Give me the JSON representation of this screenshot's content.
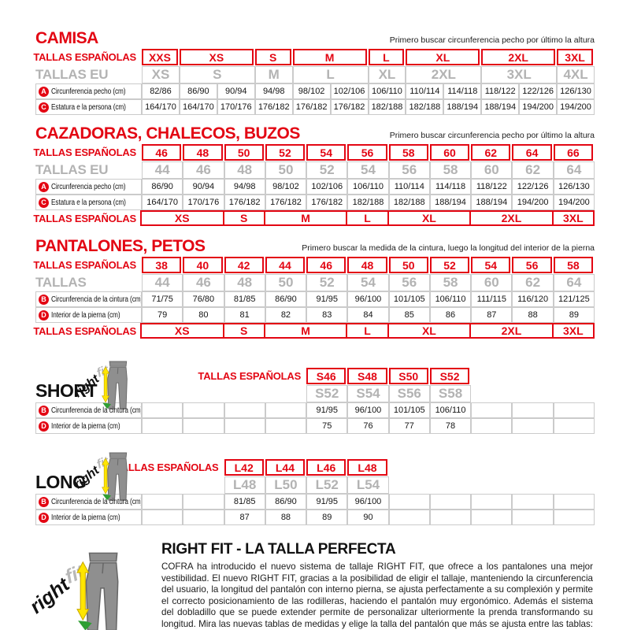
{
  "colors": {
    "red": "#e30613",
    "gray_size": "#b3b3b3",
    "border": "#cbcbcb",
    "yellow": "#ffe600",
    "green": "#2f9e33",
    "pants_gray": "#8f8f8f"
  },
  "camisa": {
    "title": "CAMISA",
    "note": "Primero buscar circunferencia pecho por último la altura",
    "table": {
      "cols": 12,
      "rows": [
        [
          {
            "k": "lblr",
            "t": "TALLAS ESPAÑOLAS"
          },
          {
            "k": "rh",
            "t": "XXS",
            "s": 1
          },
          {
            "k": "rh",
            "t": "XS",
            "s": 2
          },
          {
            "k": "rh",
            "t": "S",
            "s": 1
          },
          {
            "k": "rh",
            "t": "M",
            "s": 2
          },
          {
            "k": "rh",
            "t": "L",
            "s": 1
          },
          {
            "k": "rh",
            "t": "XL",
            "s": 2
          },
          {
            "k": "rh",
            "t": "2XL",
            "s": 2
          },
          {
            "k": "rh",
            "t": "3XL",
            "s": 1
          }
        ],
        [
          {
            "k": "lbleu",
            "t": "TALLAS EU"
          },
          {
            "k": "eu",
            "t": "XS",
            "s": 1
          },
          {
            "k": "eu",
            "t": "S",
            "s": 2
          },
          {
            "k": "eu",
            "t": "M",
            "s": 1
          },
          {
            "k": "eu",
            "t": "L",
            "s": 2
          },
          {
            "k": "eu",
            "t": "XL",
            "s": 1
          },
          {
            "k": "eu",
            "t": "2XL",
            "s": 2
          },
          {
            "k": "eu",
            "t": "3XL",
            "s": 2
          },
          {
            "k": "eu",
            "t": "4XL",
            "s": 1
          }
        ],
        [
          {
            "k": "lbld",
            "b": "A",
            "t": "Circunferencia pecho (cm)"
          },
          {
            "k": "d",
            "t": "82/86"
          },
          {
            "k": "d",
            "t": "86/90"
          },
          {
            "k": "d",
            "t": "90/94"
          },
          {
            "k": "d",
            "t": "94/98"
          },
          {
            "k": "d",
            "t": "98/102"
          },
          {
            "k": "d",
            "t": "102/106"
          },
          {
            "k": "d",
            "t": "106/110"
          },
          {
            "k": "d",
            "t": "110/114"
          },
          {
            "k": "d",
            "t": "114/118"
          },
          {
            "k": "d",
            "t": "118/122"
          },
          {
            "k": "d",
            "t": "122/126"
          },
          {
            "k": "d",
            "t": "126/130"
          }
        ],
        [
          {
            "k": "lbld",
            "b": "C",
            "t": "Estatura e la persona (cm)"
          },
          {
            "k": "d",
            "t": "164/170"
          },
          {
            "k": "d",
            "t": "164/170"
          },
          {
            "k": "d",
            "t": "170/176"
          },
          {
            "k": "d",
            "t": "176/182"
          },
          {
            "k": "d",
            "t": "176/182"
          },
          {
            "k": "d",
            "t": "176/182"
          },
          {
            "k": "d",
            "t": "182/188"
          },
          {
            "k": "d",
            "t": "182/188"
          },
          {
            "k": "d",
            "t": "188/194"
          },
          {
            "k": "d",
            "t": "188/194"
          },
          {
            "k": "d",
            "t": "194/200"
          },
          {
            "k": "d",
            "t": "194/200"
          }
        ]
      ]
    }
  },
  "cazadoras": {
    "title": "CAZADORAS, CHALECOS, BUZOS",
    "note": "Primero buscar circunferencia pecho por último la altura",
    "table": {
      "cols": 11,
      "rows": [
        [
          {
            "k": "lblr",
            "t": "TALLAS ESPAÑOLAS"
          },
          {
            "k": "rh",
            "t": "46"
          },
          {
            "k": "rh",
            "t": "48"
          },
          {
            "k": "rh",
            "t": "50"
          },
          {
            "k": "rh",
            "t": "52"
          },
          {
            "k": "rh",
            "t": "54"
          },
          {
            "k": "rh",
            "t": "56"
          },
          {
            "k": "rh",
            "t": "58"
          },
          {
            "k": "rh",
            "t": "60"
          },
          {
            "k": "rh",
            "t": "62"
          },
          {
            "k": "rh",
            "t": "64"
          },
          {
            "k": "rh",
            "t": "66"
          }
        ],
        [
          {
            "k": "lbleu",
            "t": "TALLAS EU"
          },
          {
            "k": "eu",
            "t": "44"
          },
          {
            "k": "eu",
            "t": "46"
          },
          {
            "k": "eu",
            "t": "48"
          },
          {
            "k": "eu",
            "t": "50"
          },
          {
            "k": "eu",
            "t": "52"
          },
          {
            "k": "eu",
            "t": "54"
          },
          {
            "k": "eu",
            "t": "56"
          },
          {
            "k": "eu",
            "t": "58"
          },
          {
            "k": "eu",
            "t": "60"
          },
          {
            "k": "eu",
            "t": "62"
          },
          {
            "k": "eu",
            "t": "64"
          }
        ],
        [
          {
            "k": "lbld",
            "b": "A",
            "t": "Circunferencia pecho (cm)"
          },
          {
            "k": "d",
            "t": "86/90"
          },
          {
            "k": "d",
            "t": "90/94"
          },
          {
            "k": "d",
            "t": "94/98"
          },
          {
            "k": "d",
            "t": "98/102"
          },
          {
            "k": "d",
            "t": "102/106"
          },
          {
            "k": "d",
            "t": "106/110"
          },
          {
            "k": "d",
            "t": "110/114"
          },
          {
            "k": "d",
            "t": "114/118"
          },
          {
            "k": "d",
            "t": "118/122"
          },
          {
            "k": "d",
            "t": "122/126"
          },
          {
            "k": "d",
            "t": "126/130"
          }
        ],
        [
          {
            "k": "lbld",
            "b": "C",
            "t": "Estatura e la persona (cm)"
          },
          {
            "k": "d",
            "t": "164/170"
          },
          {
            "k": "d",
            "t": "170/176"
          },
          {
            "k": "d",
            "t": "176/182"
          },
          {
            "k": "d",
            "t": "176/182"
          },
          {
            "k": "d",
            "t": "176/182"
          },
          {
            "k": "d",
            "t": "182/188"
          },
          {
            "k": "d",
            "t": "182/188"
          },
          {
            "k": "d",
            "t": "188/194"
          },
          {
            "k": "d",
            "t": "188/194"
          },
          {
            "k": "d",
            "t": "194/200"
          },
          {
            "k": "d",
            "t": "194/200"
          }
        ],
        [
          {
            "k": "lblr",
            "t": "TALLAS ESPAÑOLAS"
          },
          {
            "k": "rf",
            "t": "XS",
            "s": 2
          },
          {
            "k": "rf",
            "t": "S",
            "s": 1
          },
          {
            "k": "rf",
            "t": "M",
            "s": 2
          },
          {
            "k": "rf",
            "t": "L",
            "s": 1
          },
          {
            "k": "rf",
            "t": "XL",
            "s": 2
          },
          {
            "k": "rf",
            "t": "2XL",
            "s": 2
          },
          {
            "k": "rf",
            "t": "3XL",
            "s": 1
          }
        ]
      ]
    }
  },
  "pantalones": {
    "title": "PANTALONES, PETOS",
    "note": "Primero buscar la medida de la cintura, luego la longitud del interior de la pierna",
    "table": {
      "cols": 11,
      "rows": [
        [
          {
            "k": "lblr",
            "t": "TALLAS ESPAÑOLAS"
          },
          {
            "k": "rh",
            "t": "38"
          },
          {
            "k": "rh",
            "t": "40"
          },
          {
            "k": "rh",
            "t": "42"
          },
          {
            "k": "rh",
            "t": "44"
          },
          {
            "k": "rh",
            "t": "46"
          },
          {
            "k": "rh",
            "t": "48"
          },
          {
            "k": "rh",
            "t": "50"
          },
          {
            "k": "rh",
            "t": "52"
          },
          {
            "k": "rh",
            "t": "54"
          },
          {
            "k": "rh",
            "t": "56"
          },
          {
            "k": "rh",
            "t": "58"
          }
        ],
        [
          {
            "k": "lbleu",
            "t": "TALLAS"
          },
          {
            "k": "eu",
            "t": "44"
          },
          {
            "k": "eu",
            "t": "46"
          },
          {
            "k": "eu",
            "t": "48"
          },
          {
            "k": "eu",
            "t": "50"
          },
          {
            "k": "eu",
            "t": "52"
          },
          {
            "k": "eu",
            "t": "54"
          },
          {
            "k": "eu",
            "t": "56"
          },
          {
            "k": "eu",
            "t": "58"
          },
          {
            "k": "eu",
            "t": "60"
          },
          {
            "k": "eu",
            "t": "62"
          },
          {
            "k": "eu",
            "t": "64"
          }
        ],
        [
          {
            "k": "lbld",
            "b": "B",
            "t": "Circunferencia de la cintura (cm)"
          },
          {
            "k": "d",
            "t": "71/75"
          },
          {
            "k": "d",
            "t": "76/80"
          },
          {
            "k": "d",
            "t": "81/85"
          },
          {
            "k": "d",
            "t": "86/90"
          },
          {
            "k": "d",
            "t": "91/95"
          },
          {
            "k": "d",
            "t": "96/100"
          },
          {
            "k": "d",
            "t": "101/105"
          },
          {
            "k": "d",
            "t": "106/110"
          },
          {
            "k": "d",
            "t": "111/115"
          },
          {
            "k": "d",
            "t": "116/120"
          },
          {
            "k": "d",
            "t": "121/125"
          }
        ],
        [
          {
            "k": "lbld",
            "b": "D",
            "t": "Interior de la pierna (cm)"
          },
          {
            "k": "d",
            "t": "79"
          },
          {
            "k": "d",
            "t": "80"
          },
          {
            "k": "d",
            "t": "81"
          },
          {
            "k": "d",
            "t": "82"
          },
          {
            "k": "d",
            "t": "83"
          },
          {
            "k": "d",
            "t": "84"
          },
          {
            "k": "d",
            "t": "85"
          },
          {
            "k": "d",
            "t": "86"
          },
          {
            "k": "d",
            "t": "87"
          },
          {
            "k": "d",
            "t": "88"
          },
          {
            "k": "d",
            "t": "89"
          }
        ],
        [
          {
            "k": "lblr",
            "t": "TALLAS ESPAÑOLAS"
          },
          {
            "k": "rf",
            "t": "XS",
            "s": 2
          },
          {
            "k": "rf",
            "t": "S",
            "s": 1
          },
          {
            "k": "rf",
            "t": "M",
            "s": 2
          },
          {
            "k": "rf",
            "t": "L",
            "s": 1
          },
          {
            "k": "rf",
            "t": "XL",
            "s": 2
          },
          {
            "k": "rf",
            "t": "2XL",
            "s": 2
          },
          {
            "k": "rf",
            "t": "3XL",
            "s": 1
          }
        ]
      ]
    }
  },
  "short": {
    "name": "SHORT",
    "table": {
      "cols": 11,
      "rows": [
        [
          {
            "k": "ghostr",
            "t": "TALLAS ESPAÑOLAS",
            "s": 5
          },
          {
            "k": "rh",
            "t": "S46"
          },
          {
            "k": "rh",
            "t": "S48"
          },
          {
            "k": "rh",
            "t": "S50"
          },
          {
            "k": "rh",
            "t": "S52"
          },
          {
            "k": "ghost",
            "t": "",
            "s": 3
          }
        ],
        [
          {
            "k": "ghost",
            "t": "",
            "s": 5
          },
          {
            "k": "eu",
            "t": "S52"
          },
          {
            "k": "eu",
            "t": "S54"
          },
          {
            "k": "eu",
            "t": "S56"
          },
          {
            "k": "eu",
            "t": "S58"
          },
          {
            "k": "ghost",
            "t": "",
            "s": 3
          }
        ],
        [
          {
            "k": "lbld",
            "b": "B",
            "t": "Circunferencia de la cintura (cm)"
          },
          {
            "k": "d",
            "t": ""
          },
          {
            "k": "d",
            "t": ""
          },
          {
            "k": "d",
            "t": ""
          },
          {
            "k": "d",
            "t": ""
          },
          {
            "k": "d",
            "t": "91/95"
          },
          {
            "k": "d",
            "t": "96/100"
          },
          {
            "k": "d",
            "t": "101/105"
          },
          {
            "k": "d",
            "t": "106/110"
          },
          {
            "k": "d",
            "t": ""
          },
          {
            "k": "d",
            "t": ""
          },
          {
            "k": "d",
            "t": ""
          }
        ],
        [
          {
            "k": "lbld",
            "b": "D",
            "t": "Interior de la pierna (cm)"
          },
          {
            "k": "d",
            "t": ""
          },
          {
            "k": "d",
            "t": ""
          },
          {
            "k": "d",
            "t": ""
          },
          {
            "k": "d",
            "t": ""
          },
          {
            "k": "d",
            "t": "75"
          },
          {
            "k": "d",
            "t": "76"
          },
          {
            "k": "d",
            "t": "77"
          },
          {
            "k": "d",
            "t": "78"
          },
          {
            "k": "d",
            "t": ""
          },
          {
            "k": "d",
            "t": ""
          },
          {
            "k": "d",
            "t": ""
          }
        ]
      ]
    }
  },
  "long": {
    "name": "LONG",
    "table": {
      "cols": 11,
      "rows": [
        [
          {
            "k": "ghostr",
            "t": "TALLAS ESPAÑOLAS",
            "s": 3
          },
          {
            "k": "rh",
            "t": "L42"
          },
          {
            "k": "rh",
            "t": "L44"
          },
          {
            "k": "rh",
            "t": "L46"
          },
          {
            "k": "rh",
            "t": "L48"
          },
          {
            "k": "ghost",
            "t": "",
            "s": 5
          }
        ],
        [
          {
            "k": "ghost",
            "t": "",
            "s": 3
          },
          {
            "k": "eu",
            "t": "L48"
          },
          {
            "k": "eu",
            "t": "L50"
          },
          {
            "k": "eu",
            "t": "L52"
          },
          {
            "k": "eu",
            "t": "L54"
          },
          {
            "k": "ghost",
            "t": "",
            "s": 5
          }
        ],
        [
          {
            "k": "lbld",
            "b": "B",
            "t": "Circunferencia de la cintura (cm)"
          },
          {
            "k": "d",
            "t": ""
          },
          {
            "k": "d",
            "t": ""
          },
          {
            "k": "d",
            "t": "81/85"
          },
          {
            "k": "d",
            "t": "86/90"
          },
          {
            "k": "d",
            "t": "91/95"
          },
          {
            "k": "d",
            "t": "96/100"
          },
          {
            "k": "d",
            "t": ""
          },
          {
            "k": "d",
            "t": ""
          },
          {
            "k": "d",
            "t": ""
          },
          {
            "k": "d",
            "t": ""
          },
          {
            "k": "d",
            "t": ""
          }
        ],
        [
          {
            "k": "lbld",
            "b": "D",
            "t": "Interior de la pierna (cm)"
          },
          {
            "k": "d",
            "t": ""
          },
          {
            "k": "d",
            "t": ""
          },
          {
            "k": "d",
            "t": "87"
          },
          {
            "k": "d",
            "t": "88"
          },
          {
            "k": "d",
            "t": "89"
          },
          {
            "k": "d",
            "t": "90"
          },
          {
            "k": "d",
            "t": ""
          },
          {
            "k": "d",
            "t": ""
          },
          {
            "k": "d",
            "t": ""
          },
          {
            "k": "d",
            "t": ""
          },
          {
            "k": "d",
            "t": ""
          }
        ]
      ]
    }
  },
  "rightfit": {
    "brand_right": "right",
    "brand_fit": "fit",
    "heading": "RIGHT FIT - LA TALLA PERFECTA",
    "paragraph": "COFRA ha introducido el nuevo sistema de tallaje RIGHT FIT, que ofrece a los pantalones una mejor vestibilidad. El nuevo RIGHT FIT, gracias a la posibilidad de eligir el tallaje, manteniendo la circunferencia del usuario, la longitud del pantalón con interno pierna, se ajusta perfectamente a su complexión y permite el correcto posicionamiento de las rodilleras, haciendo el pantalón muy ergonómico. Además el sistema del dobladillo que se puede extender permite de personalizar ulteriormente la prenda transformando su longitud. Mira las nuevas tablas de medidas y elige la talla del pantalón que más se ajusta entre las tablas: NORMAL, SHORT y LONG."
  }
}
